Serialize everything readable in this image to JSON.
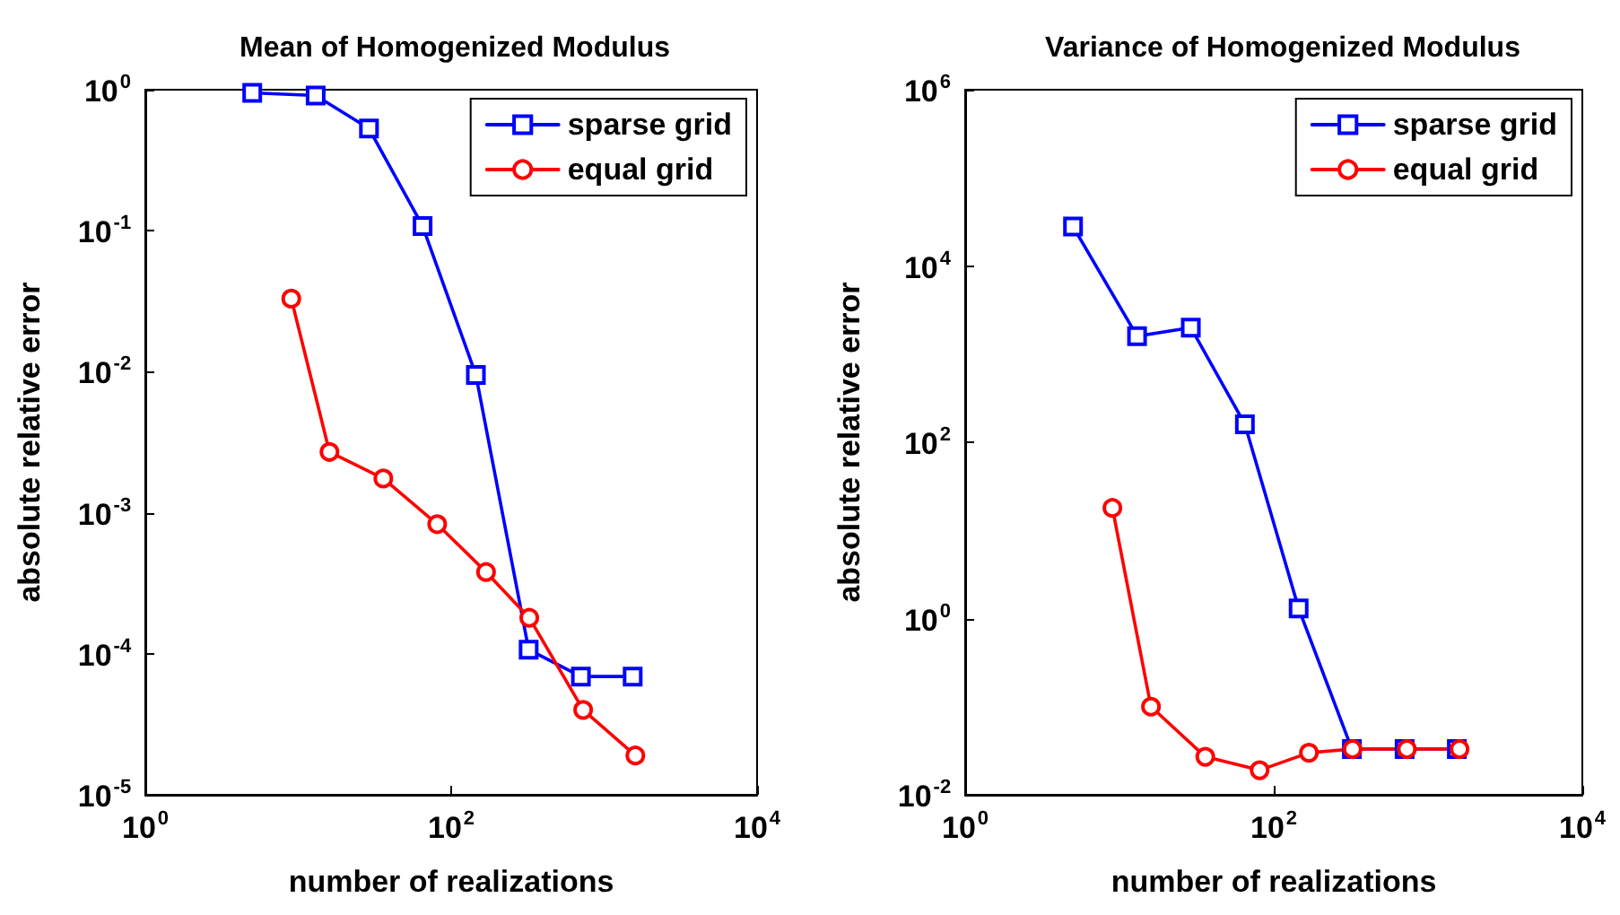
{
  "chart_data": [
    {
      "type": "line",
      "title": "Mean of Homogenized Modulus",
      "xlabel": "number of realizations",
      "ylabel": "absolute relative error",
      "log": "xy",
      "legend": "top right",
      "grid": false,
      "xlim": [
        1,
        10000
      ],
      "xticks": [
        {
          "value": 1,
          "label": "10$^{0}$"
        },
        {
          "value": 100,
          "label": "10$^{2}$"
        },
        {
          "value": 10000,
          "label": "10$^{4}$"
        }
      ],
      "ylim": [
        1e-05,
        1
      ],
      "yticks": [
        {
          "value": 1e-05,
          "label": "10$^{-5}$"
        },
        {
          "value": 0.0001,
          "label": "10$^{-4}$"
        },
        {
          "value": 0.001,
          "label": "10$^{-3}$"
        },
        {
          "value": 0.01,
          "label": "10$^{-2}$"
        },
        {
          "value": 0.1,
          "label": "10$^{-1}$"
        },
        {
          "value": 1,
          "label": "10$^{0}$"
        }
      ],
      "series": [
        {
          "name": "sparse grid",
          "color": "#0000ff",
          "marker": "square",
          "x": [
            5,
            13,
            29,
            65,
            145,
            321,
            705,
            1537
          ],
          "values": [
            0.95,
            0.91,
            0.53,
            0.108,
            0.0095,
            0.000107,
            6.9e-05,
            6.9e-05
          ]
        },
        {
          "name": "equal grid",
          "color": "#ff0000",
          "marker": "circle",
          "x": [
            9,
            16,
            36,
            81,
            169,
            324,
            729,
            1600
          ],
          "values": [
            0.033,
            0.0027,
            0.00175,
            0.00083,
            0.00038,
            0.00018,
            4e-05,
            1.9e-05
          ]
        }
      ]
    },
    {
      "type": "line",
      "title": "Variance of Homogenized Modulus",
      "xlabel": "number of realizations",
      "ylabel": "absolute relative error",
      "log": "xy",
      "legend": "top right",
      "grid": false,
      "xlim": [
        1,
        10000
      ],
      "xticks": [
        {
          "value": 1,
          "label": "10$^{0}$"
        },
        {
          "value": 100,
          "label": "10$^{2}$"
        },
        {
          "value": 10000,
          "label": "10$^{4}$"
        }
      ],
      "ylim": [
        0.01,
        1000000
      ],
      "yticks": [
        {
          "value": 0.01,
          "label": "10$^{-2}$"
        },
        {
          "value": 1,
          "label": "10$^{0}$"
        },
        {
          "value": 100,
          "label": "10$^{2}$"
        },
        {
          "value": 10000,
          "label": "10$^{4}$"
        },
        {
          "value": 1000000,
          "label": "10$^{6}$"
        }
      ],
      "series": [
        {
          "name": "sparse grid",
          "color": "#0000ff",
          "marker": "square",
          "x": [
            5,
            13,
            29,
            65,
            145,
            321,
            705,
            1537
          ],
          "values": [
            28000,
            1600,
            2000,
            160,
            1.3,
            0.033,
            0.033,
            0.033
          ]
        },
        {
          "name": "equal grid",
          "color": "#ff0000",
          "marker": "circle",
          "x": [
            9,
            16,
            36,
            81,
            169,
            324,
            729,
            1600
          ],
          "values": [
            18,
            0.1,
            0.027,
            0.019,
            0.03,
            0.033,
            0.033,
            0.033
          ]
        }
      ]
    }
  ]
}
